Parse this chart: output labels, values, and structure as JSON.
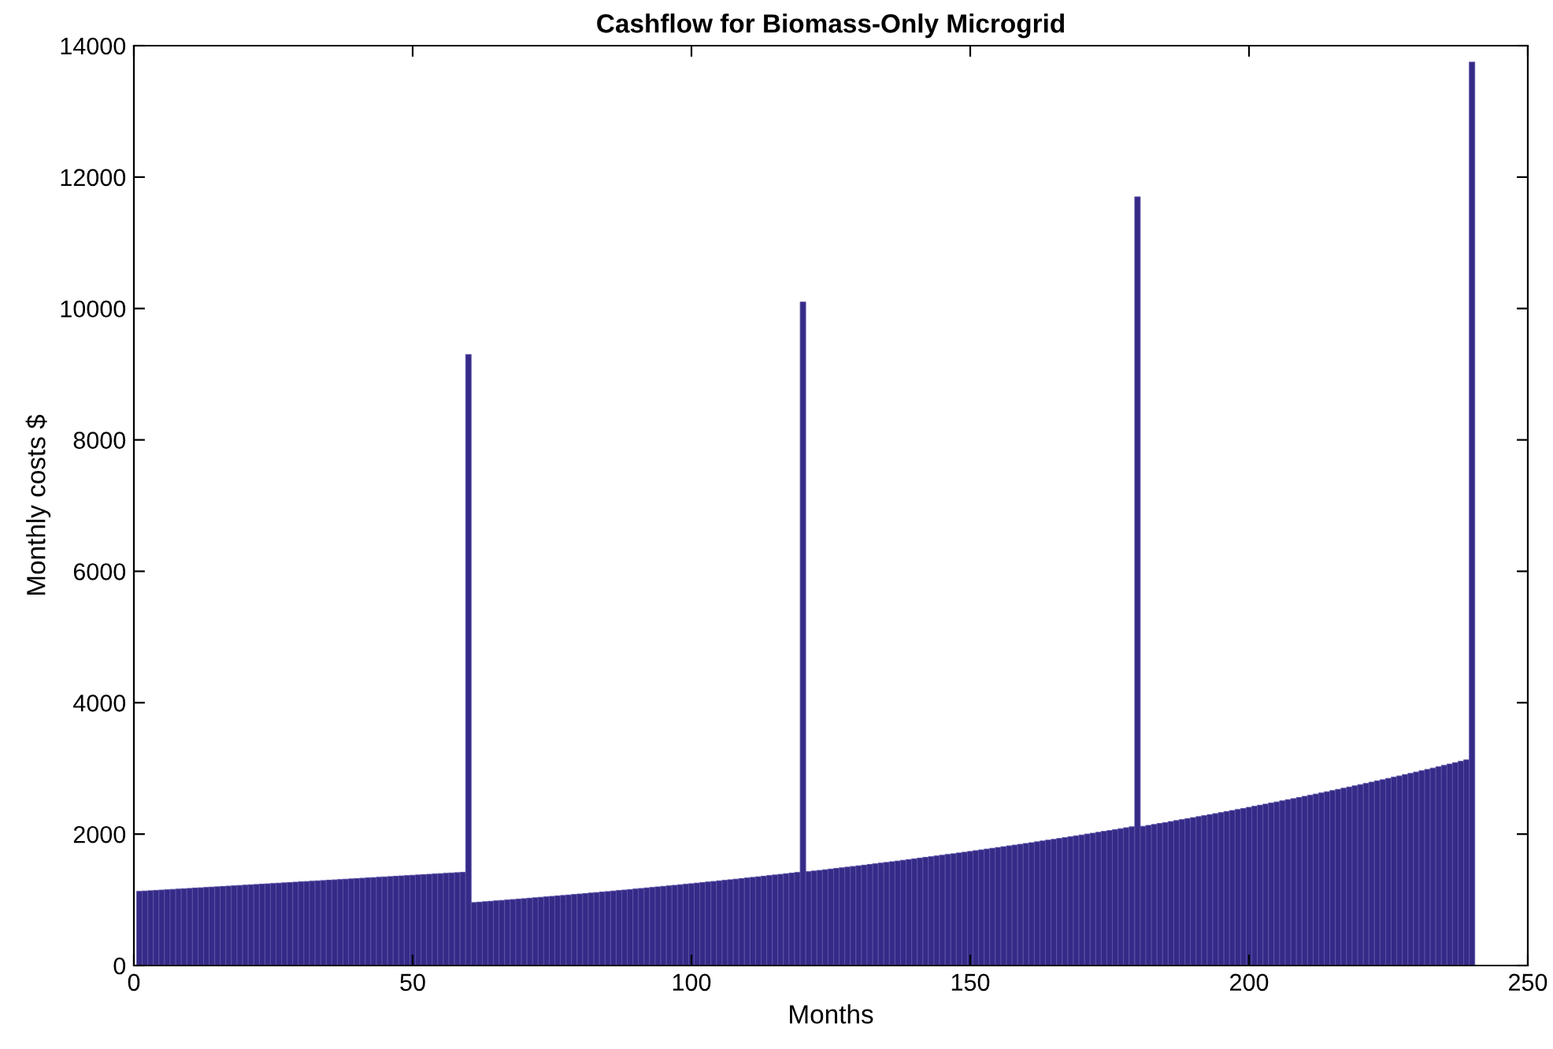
{
  "chart_data": {
    "type": "bar",
    "title": "Cashflow for Biomass-Only Microgrid",
    "xlabel": "Months",
    "ylabel": "Monthly costs $",
    "x": [
      1,
      2,
      3,
      4,
      5,
      6,
      7,
      8,
      9,
      10,
      11,
      12,
      13,
      14,
      15,
      16,
      17,
      18,
      19,
      20,
      21,
      22,
      23,
      24,
      25,
      26,
      27,
      28,
      29,
      30,
      31,
      32,
      33,
      34,
      35,
      36,
      37,
      38,
      39,
      40,
      41,
      42,
      43,
      44,
      45,
      46,
      47,
      48,
      49,
      50,
      51,
      52,
      53,
      54,
      55,
      56,
      57,
      58,
      59,
      60,
      61,
      62,
      63,
      64,
      65,
      66,
      67,
      68,
      69,
      70,
      71,
      72,
      73,
      74,
      75,
      76,
      77,
      78,
      79,
      80,
      81,
      82,
      83,
      84,
      85,
      86,
      87,
      88,
      89,
      90,
      91,
      92,
      93,
      94,
      95,
      96,
      97,
      98,
      99,
      100,
      101,
      102,
      103,
      104,
      105,
      106,
      107,
      108,
      109,
      110,
      111,
      112,
      113,
      114,
      115,
      116,
      117,
      118,
      119,
      120,
      121,
      122,
      123,
      124,
      125,
      126,
      127,
      128,
      129,
      130,
      131,
      132,
      133,
      134,
      135,
      136,
      137,
      138,
      139,
      140,
      141,
      142,
      143,
      144,
      145,
      146,
      147,
      148,
      149,
      150,
      151,
      152,
      153,
      154,
      155,
      156,
      157,
      158,
      159,
      160,
      161,
      162,
      163,
      164,
      165,
      166,
      167,
      168,
      169,
      170,
      171,
      172,
      173,
      174,
      175,
      176,
      177,
      178,
      179,
      180,
      181,
      182,
      183,
      184,
      185,
      186,
      187,
      188,
      189,
      190,
      191,
      192,
      193,
      194,
      195,
      196,
      197,
      198,
      199,
      200,
      201,
      202,
      203,
      204,
      205,
      206,
      207,
      208,
      209,
      210,
      211,
      212,
      213,
      214,
      215,
      216,
      217,
      218,
      219,
      220,
      221,
      222,
      223,
      224,
      225,
      226,
      227,
      228,
      229,
      230,
      231,
      232,
      233,
      234,
      235,
      236,
      237,
      238,
      239,
      240
    ],
    "values": [
      1130,
      1135,
      1140,
      1145,
      1150,
      1155,
      1160,
      1165,
      1170,
      1175,
      1180,
      1185,
      1190,
      1195,
      1200,
      1205,
      1210,
      1215,
      1220,
      1225,
      1230,
      1235,
      1240,
      1245,
      1250,
      1255,
      1260,
      1265,
      1270,
      1275,
      1280,
      1285,
      1290,
      1295,
      1300,
      1305,
      1310,
      1315,
      1320,
      1325,
      1330,
      1335,
      1340,
      1345,
      1350,
      1355,
      1360,
      1365,
      1370,
      1375,
      1380,
      1385,
      1390,
      1395,
      1400,
      1405,
      1410,
      1415,
      1420,
      9300,
      960,
      966,
      973,
      979,
      986,
      992,
      999,
      1006,
      1012,
      1019,
      1026,
      1033,
      1040,
      1047,
      1054,
      1061,
      1068,
      1075,
      1083,
      1090,
      1097,
      1105,
      1112,
      1120,
      1127,
      1135,
      1143,
      1150,
      1158,
      1166,
      1174,
      1182,
      1190,
      1198,
      1206,
      1214,
      1222,
      1231,
      1239,
      1247,
      1256,
      1264,
      1273,
      1281,
      1290,
      1299,
      1307,
      1316,
      1325,
      1334,
      1343,
      1352,
      1361,
      1371,
      1380,
      1389,
      1399,
      1408,
      1418,
      10100,
      1430,
      1440,
      1449,
      1459,
      1469,
      1479,
      1489,
      1499,
      1509,
      1519,
      1529,
      1539,
      1550,
      1560,
      1571,
      1581,
      1592,
      1603,
      1614,
      1625,
      1636,
      1647,
      1658,
      1669,
      1680,
      1692,
      1703,
      1715,
      1726,
      1738,
      1750,
      1761,
      1773,
      1785,
      1797,
      1809,
      1822,
      1834,
      1846,
      1859,
      1871,
      1884,
      1897,
      1910,
      1922,
      1935,
      1948,
      1962,
      1975,
      1988,
      2002,
      2015,
      2029,
      2043,
      2056,
      2070,
      2084,
      2098,
      2112,
      11700,
      2120,
      2134,
      2148,
      2163,
      2177,
      2192,
      2207,
      2222,
      2237,
      2252,
      2267,
      2282,
      2298,
      2313,
      2329,
      2345,
      2360,
      2376,
      2392,
      2409,
      2425,
      2441,
      2458,
      2474,
      2491,
      2508,
      2525,
      2542,
      2559,
      2576,
      2593,
      2611,
      2628,
      2646,
      2664,
      2682,
      2700,
      2718,
      2736,
      2755,
      2773,
      2792,
      2811,
      2830,
      2849,
      2868,
      2887,
      2907,
      2926,
      2946,
      2966,
      2986,
      3006,
      3026,
      3047,
      3067,
      3088,
      3109,
      3130,
      13750
    ],
    "color": "#352a87",
    "xlim": [
      0,
      250
    ],
    "xticks": [
      0,
      50,
      100,
      150,
      200,
      250
    ],
    "ylim": [
      0,
      14000
    ],
    "yticks": [
      0,
      2000,
      4000,
      6000,
      8000,
      10000,
      12000,
      14000
    ],
    "grid": false
  }
}
